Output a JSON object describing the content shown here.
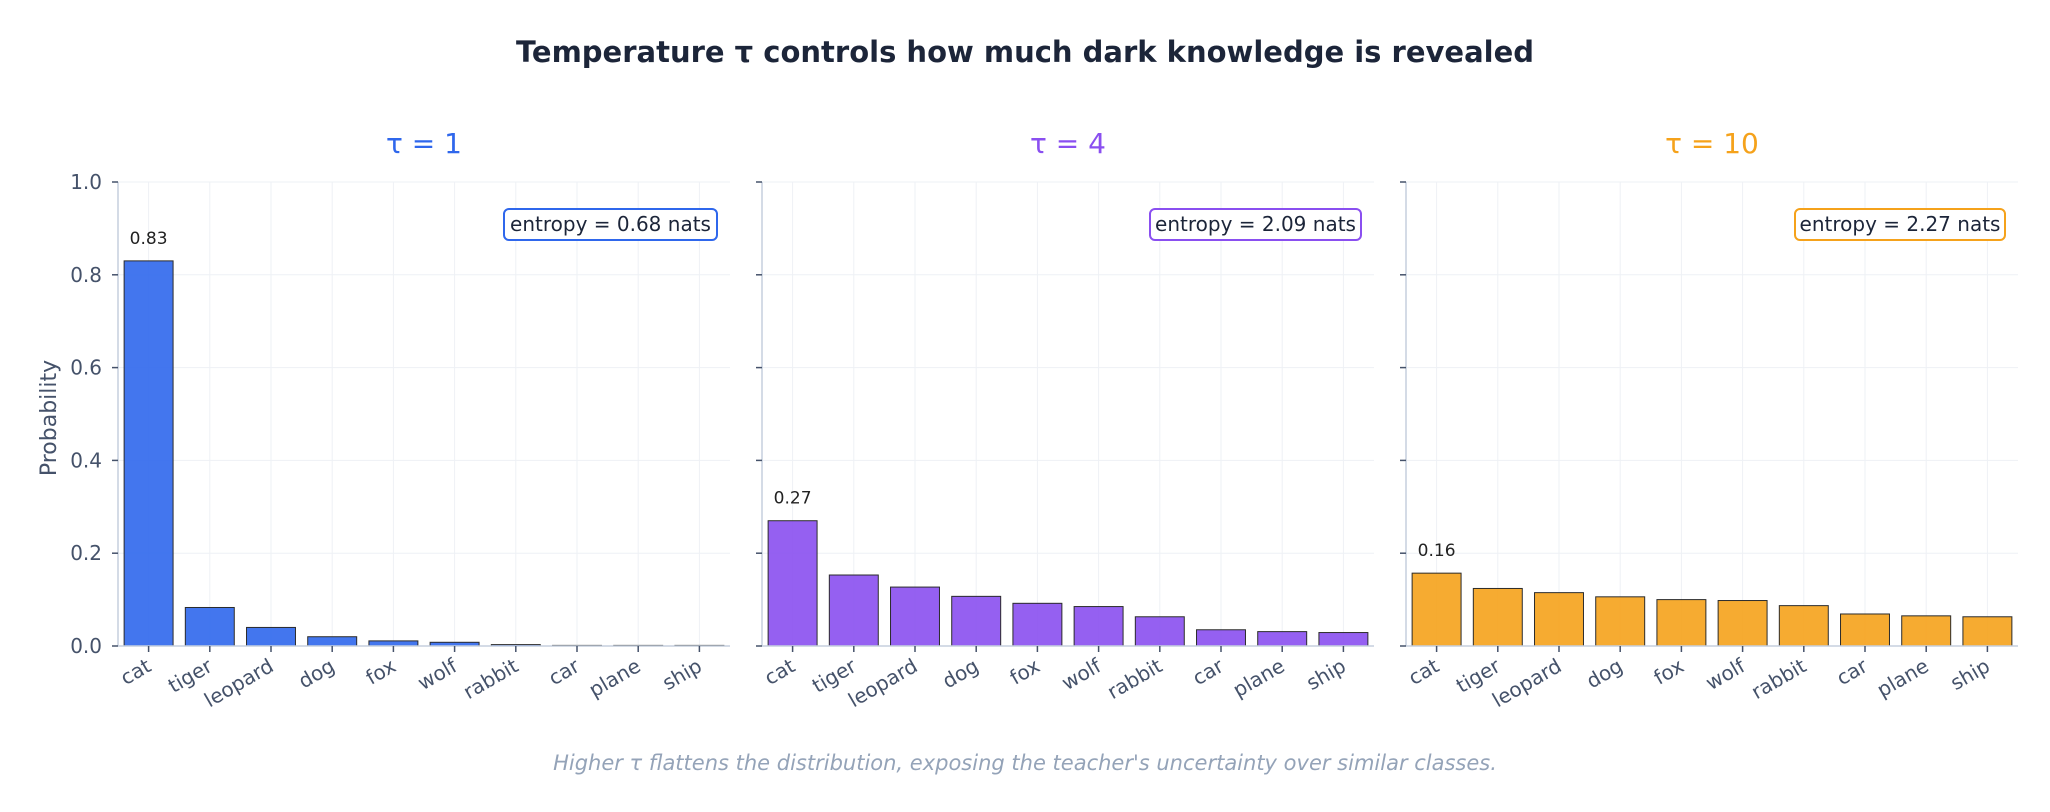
{
  "title": "Temperature τ controls how much dark knowledge is revealed",
  "footnote": "Higher τ flattens the distribution, exposing the teacher's uncertainty over similar classes.",
  "ylabel": "Probability",
  "yticks": [
    "0.0",
    "0.2",
    "0.4",
    "0.6",
    "0.8",
    "1.0"
  ],
  "chart_data": [
    {
      "type": "bar",
      "title": "τ = 1",
      "color": "#2f67ec",
      "categories": [
        "cat",
        "tiger",
        "leopard",
        "dog",
        "fox",
        "wolf",
        "rabbit",
        "car",
        "plane",
        "ship"
      ],
      "values": [
        0.83,
        0.083,
        0.04,
        0.02,
        0.011,
        0.008,
        0.003,
        0.001,
        0.001,
        0.001
      ],
      "ylim": [
        0,
        1.0
      ],
      "ylabel": "Probability",
      "data_label": "0.83",
      "annotation": "entropy = 0.68 nats"
    },
    {
      "type": "bar",
      "title": "τ = 4",
      "color": "#8a4ff0",
      "categories": [
        "cat",
        "tiger",
        "leopard",
        "dog",
        "fox",
        "wolf",
        "rabbit",
        "car",
        "plane",
        "ship"
      ],
      "values": [
        0.27,
        0.153,
        0.127,
        0.107,
        0.092,
        0.085,
        0.063,
        0.035,
        0.031,
        0.029
      ],
      "ylim": [
        0,
        1.0
      ],
      "data_label": "0.27",
      "annotation": "entropy = 2.09 nats"
    },
    {
      "type": "bar",
      "title": "τ = 10",
      "color": "#f5a21b",
      "categories": [
        "cat",
        "tiger",
        "leopard",
        "dog",
        "fox",
        "wolf",
        "rabbit",
        "car",
        "plane",
        "ship"
      ],
      "values": [
        0.157,
        0.124,
        0.115,
        0.106,
        0.1,
        0.098,
        0.087,
        0.069,
        0.065,
        0.063
      ],
      "ylim": [
        0,
        1.0
      ],
      "data_label": "0.16",
      "annotation": "entropy = 2.27 nats"
    }
  ]
}
